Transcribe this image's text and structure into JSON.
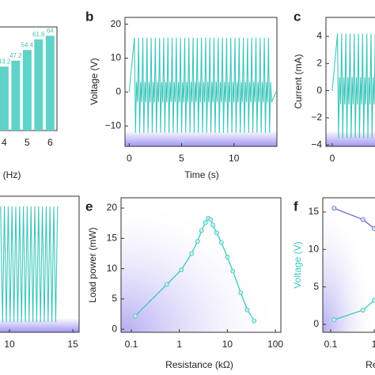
{
  "chart_data": [
    {
      "type": "bar",
      "xlabel": "Frequency (Hz)",
      "x": [
        4,
        4.5,
        5,
        5.5,
        6
      ],
      "values": [
        43.2,
        47.2,
        54.4,
        61.6,
        64
      ],
      "color": "#5fd3c8",
      "xlim": [
        0.5,
        6.3
      ],
      "xticks": [
        4,
        5,
        6
      ],
      "ylim": [
        0,
        70
      ],
      "yticks": []
    },
    {
      "type": "line",
      "label": "b",
      "xlabel": "Time (s)",
      "ylabel": "Voltage (V)",
      "x": [
        0,
        0.5,
        0.6,
        0.7,
        0.8,
        0.9,
        1,
        1.1,
        1.2,
        1.3,
        1.4,
        1.5,
        1.6,
        1.7,
        1.8,
        1.9,
        2,
        2.1,
        2.2,
        2.3,
        2.4,
        2.5,
        2.6,
        2.7,
        2.8,
        2.9,
        3,
        3.1,
        3.2,
        3.3,
        3.4,
        3.5,
        3.6,
        3.7,
        3.8,
        3.9,
        4,
        4.1,
        4.2,
        4.3,
        4.4,
        4.5,
        4.6,
        4.7,
        4.8,
        4.9,
        5,
        5.1,
        5.2,
        5.3,
        5.4,
        5.5,
        5.6,
        5.7,
        5.8,
        5.9,
        6,
        6.1,
        6.2,
        6.3,
        6.4,
        6.5,
        6.6,
        6.7,
        6.8,
        6.9,
        7,
        7.1,
        7.2,
        7.3,
        7.4,
        7.5,
        7.6,
        7.7,
        7.8,
        7.9,
        8,
        8.1,
        8.2,
        8.3,
        8.4,
        8.5,
        8.6,
        8.7,
        8.8,
        8.9,
        9,
        9.1,
        9.2,
        9.3,
        9.4,
        9.5,
        9.6,
        9.7,
        9.8,
        9.9,
        10,
        10.1,
        10.2,
        10.3,
        10.4,
        10.5,
        10.6,
        10.7,
        10.8,
        10.9,
        11,
        11.1,
        11.2,
        11.3,
        11.4,
        11.5,
        11.6,
        11.7,
        11.8,
        11.9,
        12,
        12.1,
        12.2,
        12.3,
        12.4,
        12.5,
        12.6,
        12.7,
        12.8,
        12.9,
        13,
        13.1,
        13.2,
        13.3,
        13.4,
        13.5,
        13.6,
        14
      ],
      "series": [
        {
          "color": "#3fc7bc",
          "values": [
            0,
            16,
            -12,
            3,
            -3,
            16,
            -12,
            3,
            -3,
            16,
            -12,
            3,
            -3,
            16,
            -12,
            3,
            -3,
            16,
            -12,
            3,
            -3,
            16,
            -12,
            3,
            -3,
            16,
            -12,
            3,
            -3,
            16,
            -12,
            3,
            -3,
            16,
            -12,
            3,
            -3,
            16,
            -12,
            3,
            -3,
            16,
            -12,
            3,
            -3,
            16,
            -12,
            3,
            -3,
            16,
            -12,
            3,
            -3,
            16,
            -12,
            3,
            -3,
            16,
            -12,
            3,
            -3,
            16,
            -12,
            3,
            -3,
            16,
            -12,
            3,
            -3,
            16,
            -12,
            3,
            -3,
            16,
            -12,
            3,
            -3,
            16,
            -12,
            3,
            -3,
            16,
            -12,
            3,
            -3,
            16,
            -12,
            3,
            -3,
            16,
            -12,
            3,
            -3,
            16,
            -12,
            3,
            -3,
            16,
            -12,
            3,
            -3,
            16,
            -12,
            3,
            -3,
            16,
            -12,
            3,
            -3,
            16,
            -12,
            3,
            -3,
            16,
            -12,
            3,
            -3,
            16,
            -12,
            3,
            -3,
            16,
            -12,
            3,
            -3,
            16,
            -12,
            3,
            -3,
            16,
            -12,
            3,
            -3,
            0
          ]
        }
      ],
      "xlim": [
        -0.4,
        14.1
      ],
      "xticks": [
        0,
        5,
        10
      ],
      "ylim": [
        -16,
        22
      ],
      "yticks": [
        {
          "value": -10,
          "label": "−10"
        },
        0,
        10,
        20
      ]
    },
    {
      "type": "line",
      "label": "c",
      "ylabel": "Current (mA)",
      "x": [
        0,
        0.5,
        0.6,
        0.7,
        0.8,
        0.9,
        1,
        1.1,
        1.2,
        1.3,
        1.4,
        1.5,
        1.6,
        1.7,
        1.8,
        1.9,
        2,
        2.1,
        2.2,
        2.3,
        2.4,
        2.5,
        2.6,
        2.7,
        2.8,
        2.9,
        3,
        3.1,
        3.2,
        3.3,
        3.4,
        3.5,
        3.6,
        3.7,
        3.8,
        3.9,
        4,
        4.1,
        4.2,
        4.3,
        4.4,
        4.5,
        4.6,
        4.7,
        4.8,
        4.9,
        5,
        5.1,
        5.2,
        5.3,
        5.4,
        5.5,
        5.6,
        5.7,
        5.8,
        5.9,
        6,
        6.1,
        6.2,
        6.3,
        6.4,
        6.5,
        6.6,
        6.7,
        6.8,
        6.9,
        7,
        7.1,
        7.2,
        7.3,
        7.4,
        7.5,
        7.6,
        7.7,
        7.8,
        7.9,
        8,
        8.1,
        8.2,
        8.3,
        8.4,
        8.5,
        8.6,
        8.7,
        8.8,
        8.9,
        9,
        9.1,
        9.2,
        9.3,
        9.4,
        9.5,
        9.6,
        9.7,
        9.8,
        9.9,
        10,
        10.1,
        10.2,
        10.3,
        10.4,
        10.5,
        10.6,
        10.7,
        10.8,
        10.9,
        11,
        11.1,
        11.2,
        11.3,
        11.4,
        11.5,
        11.6,
        11.7,
        11.8,
        11.9,
        12,
        12.1,
        12.2,
        12.3,
        12.4,
        12.5,
        12.6,
        12.7,
        12.8,
        12.9,
        13,
        13.1,
        13.2,
        13.3,
        13.4,
        13.5,
        13.6,
        14
      ],
      "series": [
        {
          "color": "#3fc7bc",
          "values": [
            0,
            4.2,
            -3.5,
            1,
            -1,
            4.2,
            -3.5,
            1,
            -1,
            4.2,
            -3.5,
            1,
            -1,
            4.2,
            -3.5,
            1,
            -1,
            4.2,
            -3.5,
            1,
            -1,
            4.2,
            -3.5,
            1,
            -1,
            4.2,
            -3.5,
            1,
            -1,
            4.2,
            -3.5,
            1,
            -1,
            4.2,
            -3.5,
            1,
            -1,
            4.2,
            -3.5,
            1,
            -1,
            4.2,
            -3.5,
            1,
            -1,
            4.2,
            -3.5,
            1,
            -1,
            4.2,
            -3.5,
            1,
            -1,
            4.2,
            -3.5,
            1,
            -1,
            4.2,
            -3.5,
            1,
            -1,
            4.2,
            -3.5,
            1,
            -1,
            4.2,
            -3.5,
            1,
            -1,
            4.2,
            -3.5,
            1,
            -1,
            4.2,
            -3.5,
            1,
            -1,
            4.2,
            -3.5,
            1,
            -1,
            4.2,
            -3.5,
            1,
            -1,
            4.2,
            -3.5,
            1,
            -1,
            4.2,
            -3.5,
            1,
            -1,
            4.2,
            -3.5,
            1,
            -1,
            4.2,
            -3.5,
            1,
            -1,
            4.2,
            -3.5,
            1,
            -1,
            4.2,
            -3.5,
            1,
            -1,
            4.2,
            -3.5,
            1,
            -1,
            4.2,
            -3.5,
            1,
            -1,
            4.2,
            -3.5,
            1,
            -1,
            4.2,
            -3.5,
            1,
            -1,
            4.2,
            -3.5,
            1,
            -1,
            4.2,
            -3.5,
            1,
            -1,
            0
          ]
        }
      ],
      "xlim": [
        -0.6,
        15.1
      ],
      "xticks": [
        0
      ],
      "ylim": [
        -4.1,
        5.4
      ],
      "yticks": [
        {
          "value": -4,
          "label": "−4"
        },
        {
          "value": -2,
          "label": "−2"
        },
        0,
        2,
        4
      ]
    },
    {
      "type": "line",
      "x": [
        9.3,
        9.45,
        9.6,
        9.75,
        9.9,
        10.05,
        10.2,
        10.35,
        10.5,
        10.65,
        10.8,
        10.95,
        11.1,
        11.25,
        11.4,
        11.55,
        11.7,
        11.85,
        12,
        12.15,
        12.3,
        12.45,
        12.6,
        12.75,
        12.9,
        13.05,
        13.2,
        13.35,
        13.5,
        13.65,
        13.8
      ],
      "series": [
        {
          "color": "#3fc7bc",
          "values": [
            17,
            -17,
            17,
            -17,
            17,
            -17,
            17,
            -17,
            17,
            -17,
            17,
            -17,
            17,
            -17,
            17,
            -17,
            17,
            -17,
            17,
            -17,
            17,
            -17,
            17,
            -17,
            17,
            -17,
            17,
            -17,
            17,
            -17,
            17
          ]
        }
      ],
      "xlim": [
        0,
        15.5
      ],
      "xticks": [
        10,
        15
      ],
      "ylim": [
        -20,
        20
      ],
      "yticks": []
    },
    {
      "type": "line",
      "label": "e",
      "xlabel": "Resistance (kΩ)",
      "ylabel": "Load power (mW)",
      "xscale": "log",
      "markers": true,
      "x": [
        0.12,
        0.55,
        1.1,
        1.8,
        2.4,
        2.9,
        3.5,
        4,
        4.5,
        5,
        6,
        7.5,
        10,
        13,
        19,
        26,
        36
      ],
      "series": [
        {
          "color": "#3fc7bc",
          "values": [
            2.2,
            7.4,
            9.8,
            12.5,
            14.5,
            16.3,
            17.6,
            18.3,
            18.1,
            17.2,
            15.9,
            14.3,
            11.9,
            9.6,
            6,
            3.2,
            1.4
          ]
        }
      ],
      "xlim": [
        0.061,
        130
      ],
      "xticks": [
        0.1,
        1,
        10,
        100
      ],
      "ylim": [
        -0.5,
        21.7
      ],
      "yticks": [
        0,
        5,
        10,
        15,
        20
      ]
    },
    {
      "type": "line",
      "label": "f",
      "xlabel": "Resistance (kΩ)",
      "ylabel": "Voltage (V)",
      "ylabel_color": "#3fc7bc",
      "xscale": "log",
      "markers": true,
      "x": [
        0.12,
        0.55,
        1
      ],
      "series": [
        {
          "color": "#7565d4",
          "values": [
            15.5,
            14,
            12.8
          ]
        },
        {
          "color": "#3fc7bc",
          "values": [
            0.6,
            1.9,
            3.2
          ]
        }
      ],
      "xlim": [
        0.066,
        467
      ],
      "xticks": [
        0.1,
        1
      ],
      "ylim": [
        -1.06,
        16.9
      ],
      "yticks": [
        0,
        5,
        10,
        15
      ]
    }
  ]
}
